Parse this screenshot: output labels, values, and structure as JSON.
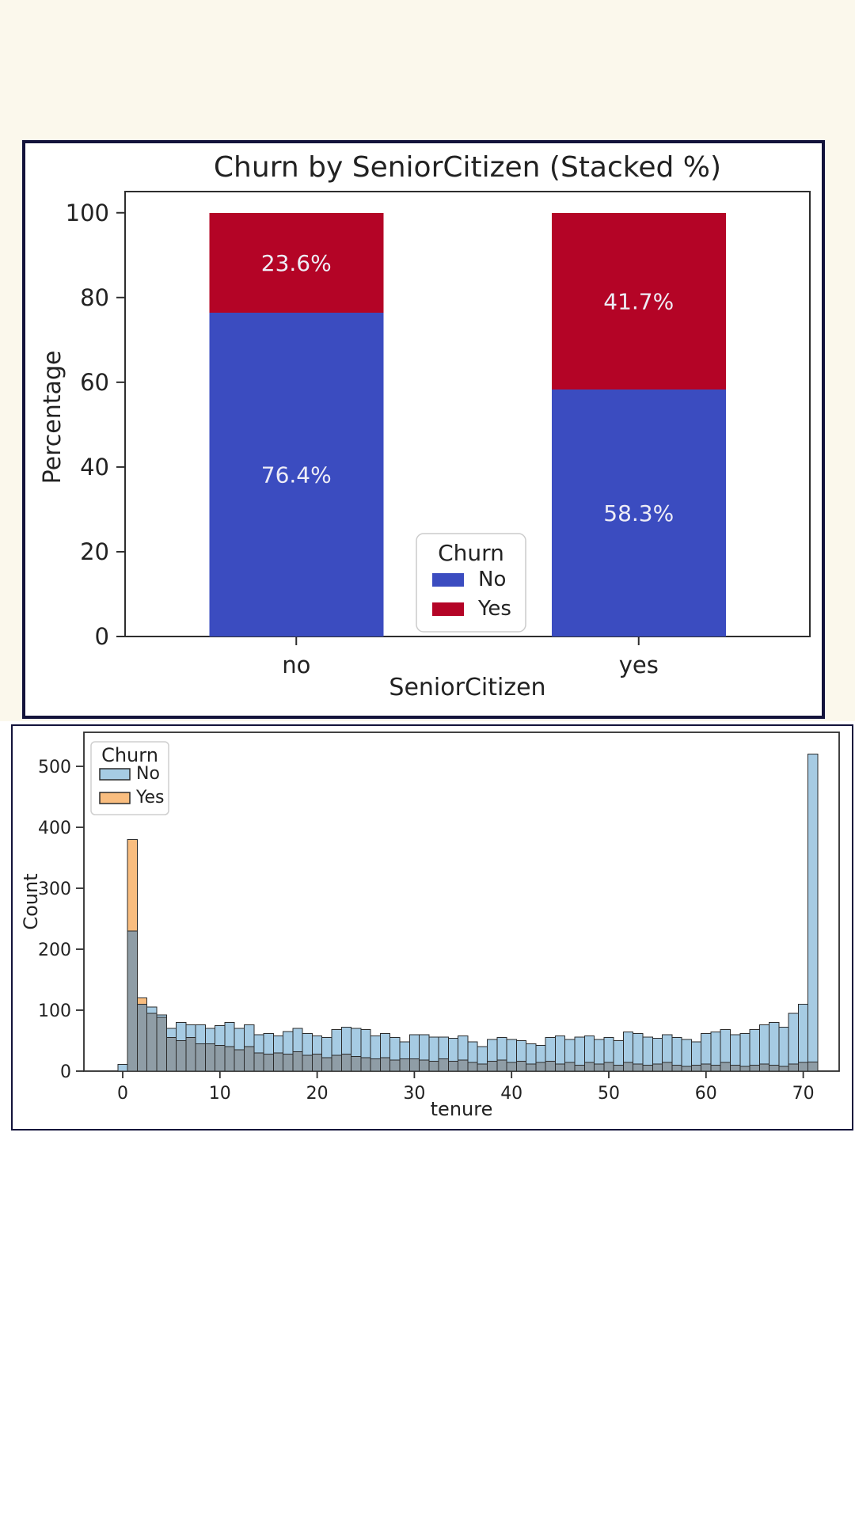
{
  "page": {
    "background_top": "#fbf8ec",
    "background_bottom": "#ffffff",
    "panel_border_color": "#13133b",
    "panel_background": "#ffffff"
  },
  "chart_data": [
    {
      "type": "bar",
      "variant": "stacked-percentage",
      "title": "Churn by SeniorCitizen (Stacked %)",
      "xlabel": "SeniorCitizen",
      "ylabel": "Percentage",
      "categories": [
        "no",
        "yes"
      ],
      "yticks": [
        0,
        20,
        40,
        60,
        80,
        100
      ],
      "ylim": [
        0,
        105
      ],
      "grid": false,
      "legend": {
        "title": "Churn",
        "position": "lower-center-inside"
      },
      "series": [
        {
          "name": "No",
          "color": "#3b4cc0",
          "values": [
            76.4,
            58.3
          ],
          "labels": [
            "76.4%",
            "58.3%"
          ]
        },
        {
          "name": "Yes",
          "color": "#b40426",
          "values": [
            23.6,
            41.7
          ],
          "labels": [
            "23.6%",
            "41.7%"
          ]
        }
      ],
      "bar_label_color": "#eeedf6",
      "text_color": "#222222",
      "spine_color": "#2e2e2e"
    },
    {
      "type": "histogram",
      "variant": "layered-translucent",
      "title": "",
      "xlabel": "tenure",
      "ylabel": "Count",
      "xticks": [
        0,
        10,
        20,
        30,
        40,
        50,
        60,
        70
      ],
      "yticks": [
        0,
        100,
        200,
        300,
        400,
        500
      ],
      "xlim": [
        -4,
        76
      ],
      "ylim": [
        0,
        556
      ],
      "bin_width": 1,
      "first_bin_center": 0,
      "legend": {
        "title": "Churn",
        "position": "upper-left-inside"
      },
      "series": [
        {
          "name": "No",
          "color": "#a6cbe3",
          "values": [
            11,
            230,
            110,
            105,
            92,
            70,
            80,
            76,
            76,
            70,
            75,
            80,
            70,
            76,
            60,
            62,
            58,
            65,
            70,
            62,
            58,
            55,
            68,
            72,
            70,
            68,
            58,
            62,
            55,
            48,
            60,
            60,
            56,
            56,
            54,
            58,
            48,
            40,
            52,
            55,
            52,
            50,
            45,
            42,
            55,
            58,
            52,
            56,
            58,
            52,
            55,
            50,
            64,
            62,
            56,
            54,
            60,
            55,
            52,
            48,
            62,
            64,
            68,
            60,
            62,
            68,
            76,
            80,
            72,
            95,
            110,
            520
          ]
        },
        {
          "name": "Yes",
          "color": "#f9bd7f",
          "values": [
            0,
            380,
            120,
            95,
            88,
            55,
            50,
            55,
            45,
            45,
            42,
            40,
            35,
            40,
            30,
            28,
            30,
            28,
            32,
            26,
            28,
            22,
            26,
            28,
            24,
            22,
            20,
            22,
            18,
            20,
            20,
            18,
            16,
            20,
            16,
            18,
            14,
            12,
            16,
            18,
            14,
            16,
            12,
            14,
            16,
            12,
            14,
            10,
            14,
            12,
            14,
            10,
            14,
            12,
            10,
            12,
            14,
            10,
            8,
            10,
            12,
            10,
            14,
            10,
            8,
            10,
            12,
            10,
            8,
            12,
            14,
            15
          ]
        }
      ],
      "overlap_color": "#8f9da6",
      "edge_color": "#2b2b2b",
      "text_color": "#222222",
      "spine_color": "#2e2e2e"
    }
  ]
}
